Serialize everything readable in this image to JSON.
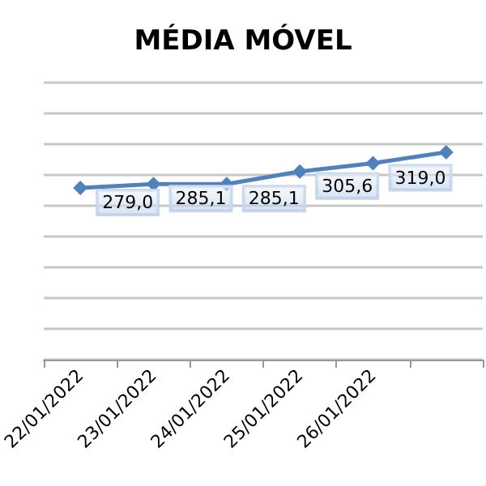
{
  "chart_data": {
    "type": "line",
    "title": "MÉDIA MÓVEL",
    "categories": [
      "22/01/2022",
      "23/01/2022",
      "24/01/2022",
      "25/01/2022",
      "26/01/2022",
      null
    ],
    "series": [
      {
        "color": "#4f81bd",
        "values": [
          279.0,
          285.1,
          285.1,
          305.6,
          319.0,
          337
        ],
        "value_labels": [
          "279,0",
          "285,1",
          "285,1",
          "305,6",
          "319,0",
          null
        ]
      }
    ],
    "ylim": [
      0,
      450
    ],
    "yticks": [
      {
        "value": 0,
        "label": null
      },
      {
        "value": 50,
        "label": null
      },
      {
        "value": 100,
        "label": null
      },
      {
        "value": 150,
        "label": null
      },
      {
        "value": 200,
        "label": null
      },
      {
        "value": 250,
        "label": null
      },
      {
        "value": 300,
        "label": null
      },
      {
        "value": 350,
        "label": null
      },
      {
        "value": 400,
        "label": null
      },
      {
        "value": 450,
        "label": null
      }
    ],
    "tick_labels": "x",
    "grid": "y",
    "marker": "diamond",
    "line_style": "solid"
  }
}
